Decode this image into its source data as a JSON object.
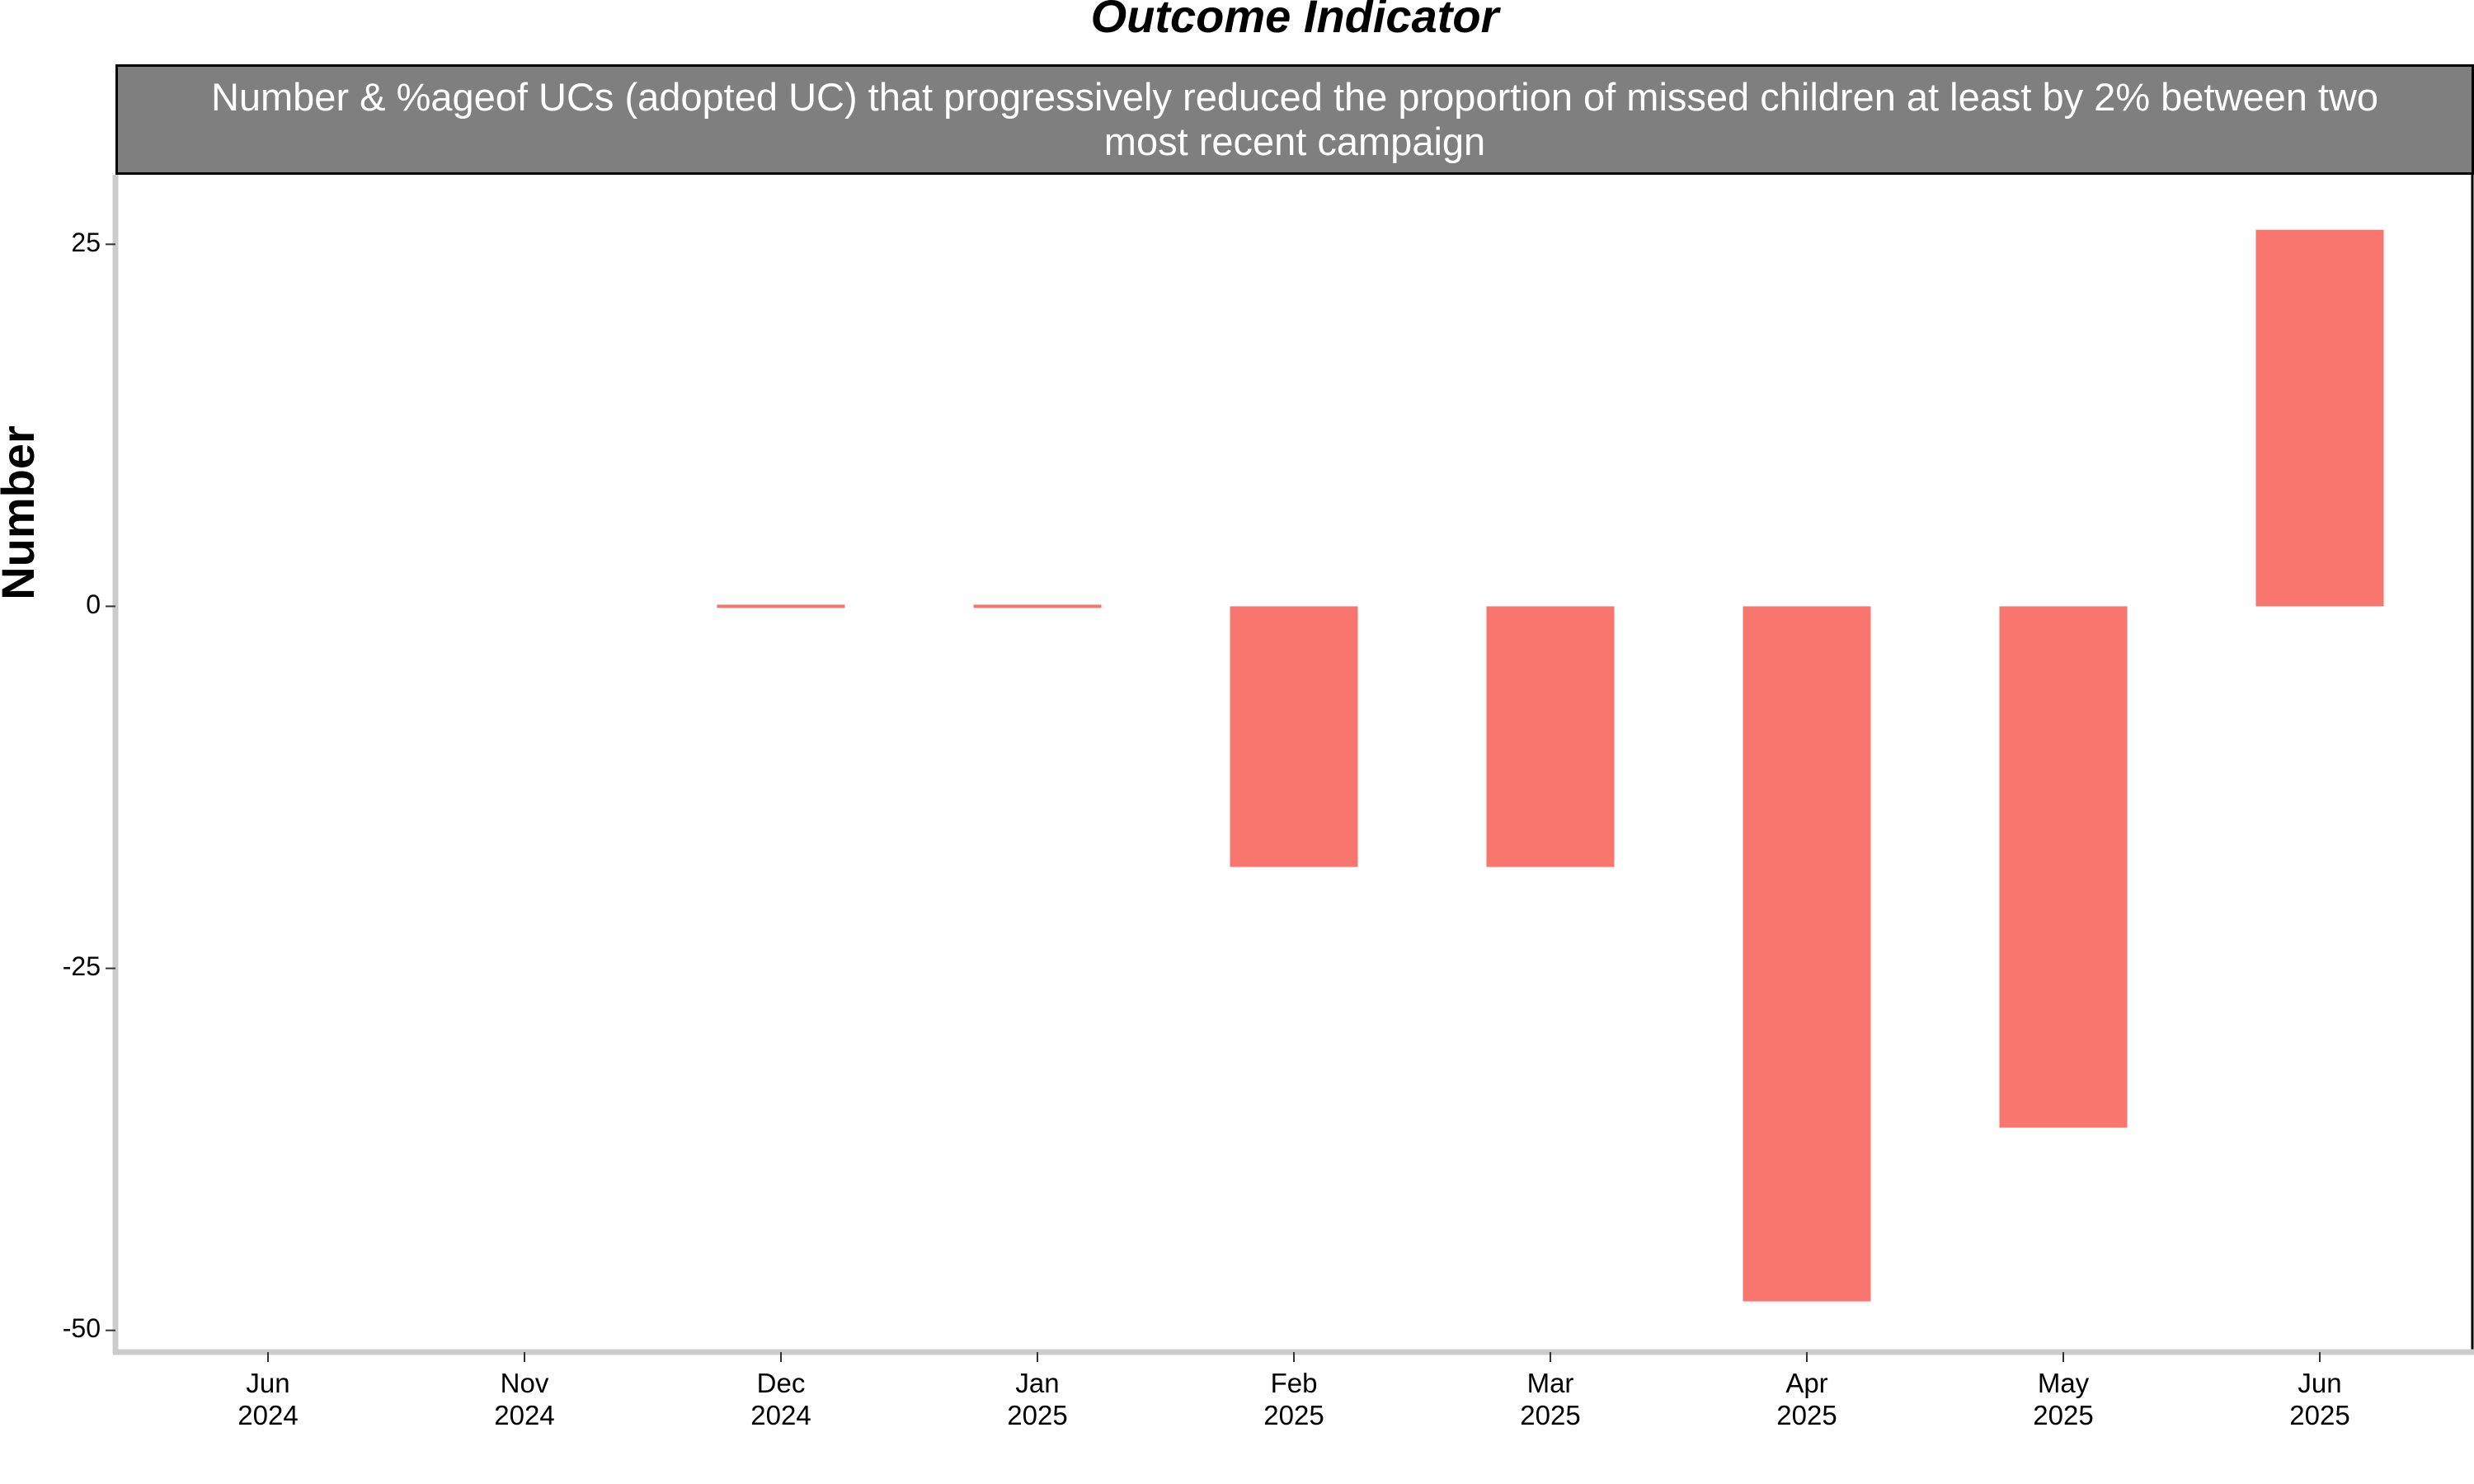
{
  "chart_data": {
    "type": "bar",
    "title": "Outcome Indicator",
    "subtitle": "Number & %ageof UCs (adopted UC) that progressively reduced the proportion of missed children at least by 2% between two most recent campaign",
    "y_label": "Number",
    "categories": [
      "Jun\n2024",
      "Nov\n2024",
      "Dec\n2024",
      "Jan\n2025",
      "Feb\n2025",
      "Mar\n2025",
      "Apr\n2025",
      "May\n2025",
      "Jun\n2025"
    ],
    "values": [
      null,
      null,
      0,
      0,
      -18,
      -18,
      -48,
      -36,
      26
    ],
    "color": "#f8766d",
    "ylim": [
      -51.5,
      29.8
    ],
    "yticks": [
      -50,
      -25,
      0,
      25
    ],
    "grid": false
  }
}
